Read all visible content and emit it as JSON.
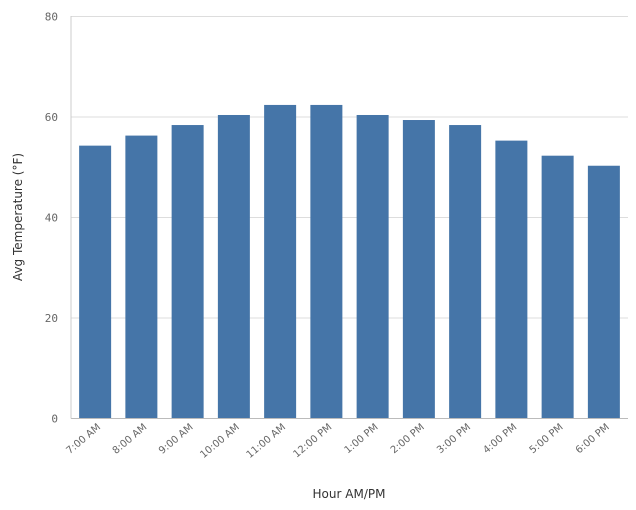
{
  "chart_data": {
    "type": "bar",
    "xlabel": "Hour AM/PM",
    "ylabel": "Avg Temperature (°F)",
    "ylim": [
      0,
      80
    ],
    "yticks": [
      "0",
      "20",
      "40",
      "60",
      "80"
    ],
    "grid": true,
    "bar_color": "#4575a8",
    "categories": [
      "7:00 AM",
      "8:00 AM",
      "9:00 AM",
      "10:00 AM",
      "11:00 AM",
      "12:00 PM",
      "1:00 PM",
      "2:00 PM",
      "3:00 PM",
      "4:00 PM",
      "5:00 PM",
      "6:00 PM"
    ],
    "values": [
      54.3,
      56.3,
      58.4,
      60.4,
      62.4,
      62.4,
      60.4,
      59.4,
      58.4,
      55.3,
      52.3,
      50.3
    ]
  }
}
